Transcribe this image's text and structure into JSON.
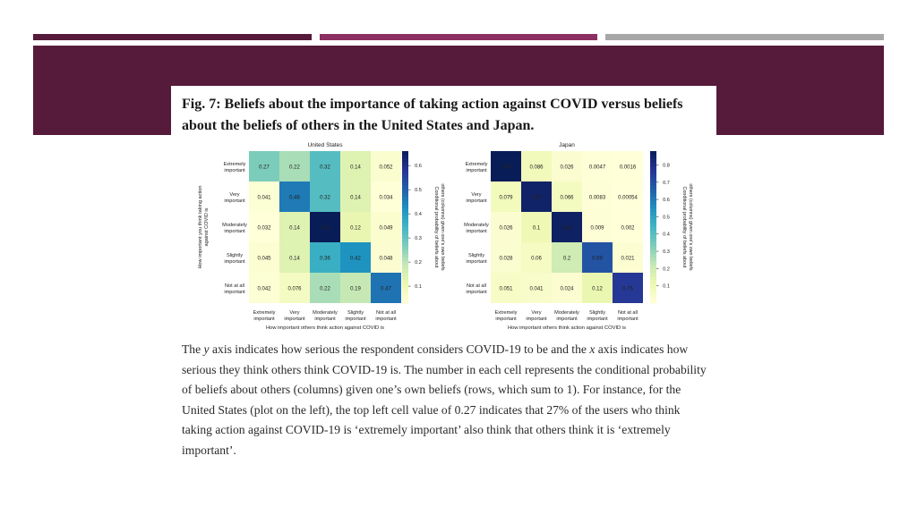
{
  "figure": {
    "title": "Fig. 7: Beliefs about the importance of taking action against COVID versus beliefs about the beliefs of others in the United States and Japan.",
    "caption": {
      "p1": "The ",
      "y": "y",
      "p2": " axis indicates how serious the respondent considers COVID-19 to be and the ",
      "x": "x",
      "p3": " axis indicates how serious they think others think COVID-19 is. The number in each cell represents the conditional probability of beliefs about others (columns) given one’s own beliefs (rows, which sum to 1). For instance, for the United States (plot on the left), the top left cell value of 0.27 indicates that 27% of the users who think taking action against COVID-19 is ‘extremely important’ also think that others think it is ‘extremely important’."
    }
  },
  "chart_data": [
    {
      "type": "heatmap",
      "title": "United States",
      "xlabel": "How important others think action against COVID is",
      "ylabel": "How important you think taking action against COVID is",
      "colorbar_label": "Conditional probability of beliefs about others (columns) given one's own beliefs",
      "row_labels": [
        [
          "Extremely",
          "important"
        ],
        [
          "Very",
          "important"
        ],
        [
          "Moderately",
          "important"
        ],
        [
          "Slightly",
          "important"
        ],
        [
          "Not at all",
          "important"
        ]
      ],
      "col_labels": [
        [
          "Extremely",
          "important"
        ],
        [
          "Very",
          "important"
        ],
        [
          "Moderately",
          "important"
        ],
        [
          "Slightly",
          "important"
        ],
        [
          "Not at all",
          "important"
        ]
      ],
      "values": [
        [
          0.27,
          0.22,
          0.32,
          0.14,
          0.052
        ],
        [
          0.041,
          0.46,
          0.32,
          0.14,
          0.034
        ],
        [
          0.032,
          0.14,
          0.66,
          0.12,
          0.049
        ],
        [
          0.045,
          0.14,
          0.36,
          0.42,
          0.048
        ],
        [
          0.042,
          0.076,
          0.22,
          0.19,
          0.47
        ]
      ],
      "cell_labels": [
        [
          "0.27",
          "0.22",
          "0.32",
          "0.14",
          "0.052"
        ],
        [
          "0.041",
          "0.46",
          "0.32",
          "0.14",
          "0.034"
        ],
        [
          "0.032",
          "0.14",
          "0.66",
          "0.12",
          "0.049"
        ],
        [
          "0.045",
          "0.14",
          "0.36",
          "0.42",
          "0.048"
        ],
        [
          "0.042",
          "0.076",
          "0.22",
          "0.19",
          "0.47"
        ]
      ],
      "colorbar_range": [
        0.03,
        0.66
      ],
      "colorbar_ticks": [
        "0.6",
        "0.5",
        "0.4",
        "0.3",
        "0.2",
        "0.1"
      ]
    },
    {
      "type": "heatmap",
      "title": "Japan",
      "xlabel": "How important others think action against COVID is",
      "ylabel": "",
      "colorbar_label": "Conditional probability of beliefs about others (columns) given one's own beliefs",
      "row_labels": [
        [
          "Extremely",
          "important"
        ],
        [
          "Very",
          "important"
        ],
        [
          "Moderately",
          "important"
        ],
        [
          "Slightly",
          "important"
        ],
        [
          "Not at all",
          "important"
        ]
      ],
      "col_labels": [
        [
          "Extremely",
          "important"
        ],
        [
          "Very",
          "important"
        ],
        [
          "Moderately",
          "important"
        ],
        [
          "Slightly",
          "important"
        ],
        [
          "Not at all",
          "important"
        ]
      ],
      "values": [
        [
          0.88,
          0.086,
          0.026,
          0.0047,
          0.0016
        ],
        [
          0.079,
          0.85,
          0.066,
          0.0083,
          0.00054
        ],
        [
          0.026,
          0.1,
          0.86,
          0.009,
          0.002
        ],
        [
          0.028,
          0.06,
          0.2,
          0.69,
          0.021
        ],
        [
          0.051,
          0.041,
          0.024,
          0.12,
          0.76
        ]
      ],
      "cell_labels": [
        [
          "0.88",
          "0.086",
          "0.026",
          "0.0047",
          "0.0016"
        ],
        [
          "0.079",
          "0.85",
          "0.066",
          "0.0083",
          "0.00054"
        ],
        [
          "0.026",
          "0.1",
          "0.86",
          "0.009",
          "0.002"
        ],
        [
          "0.028",
          "0.06",
          "0.2",
          "0.69",
          "0.021"
        ],
        [
          "0.051",
          "0.041",
          "0.024",
          "0.12",
          "0.76"
        ]
      ],
      "colorbar_range": [
        0.0,
        0.88
      ],
      "colorbar_ticks": [
        "0.8",
        "0.7",
        "0.6",
        "0.5",
        "0.4",
        "0.3",
        "0.2",
        "0.1"
      ]
    }
  ]
}
